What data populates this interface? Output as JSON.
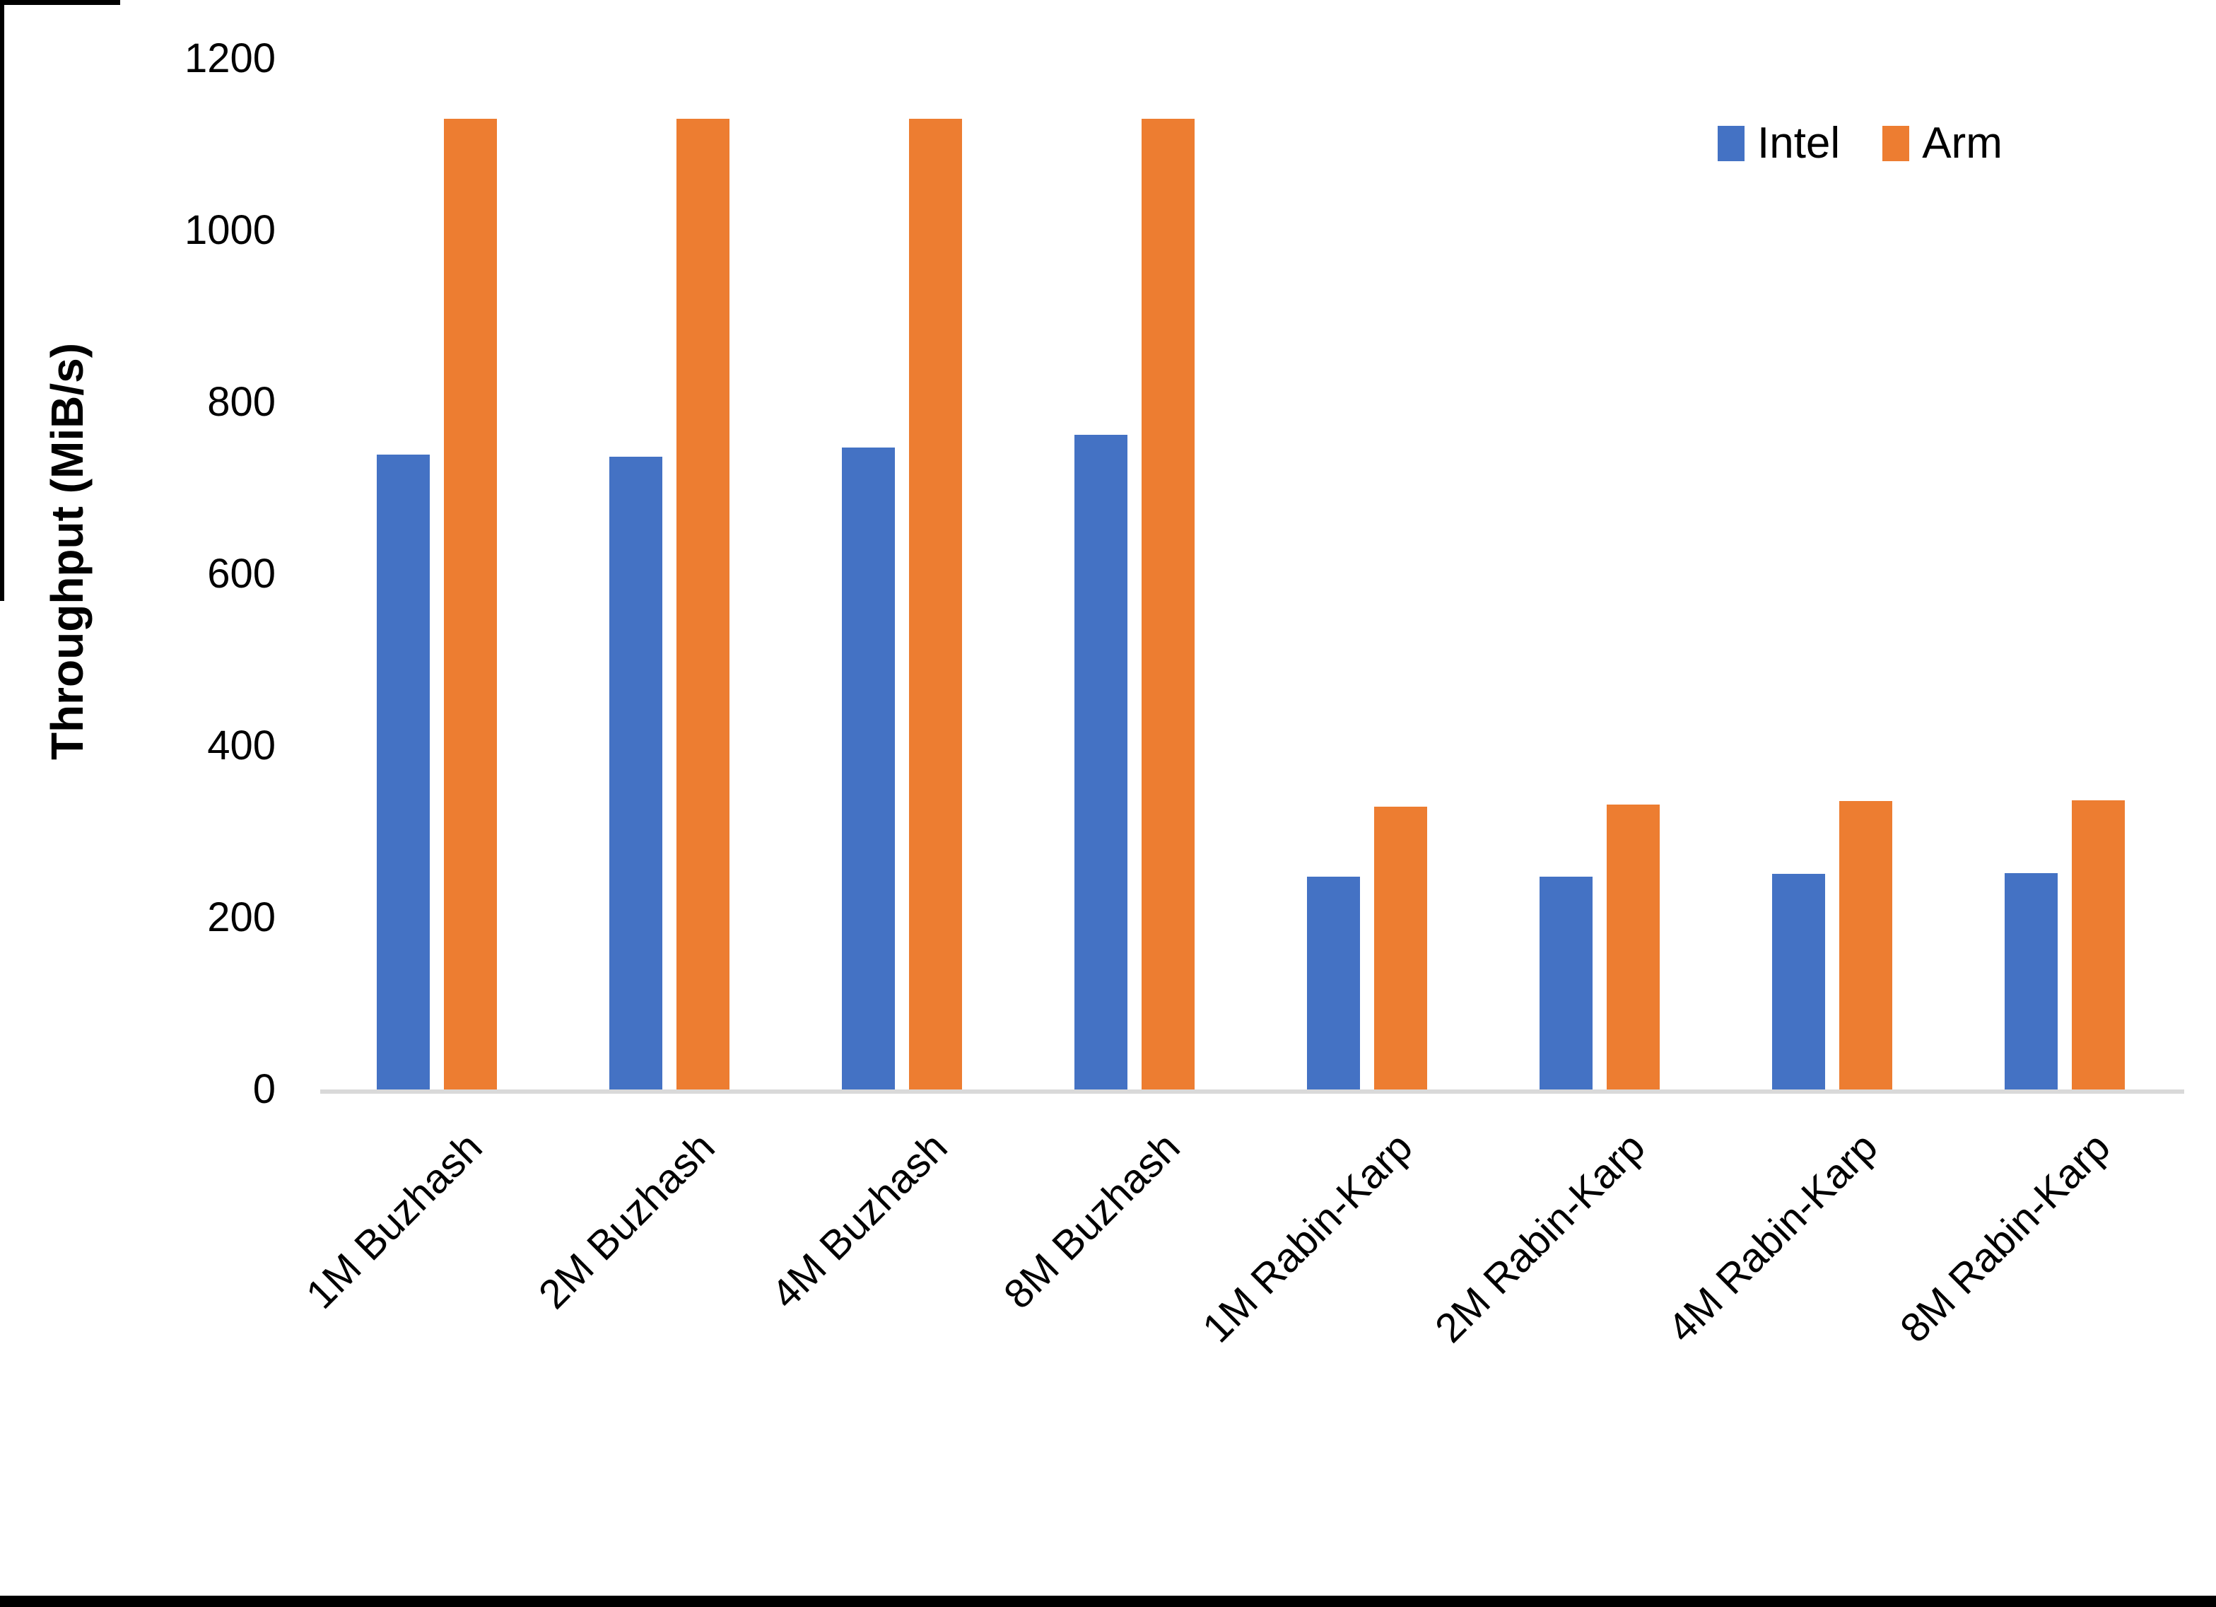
{
  "chart_data": {
    "type": "bar",
    "title": "",
    "xlabel": "",
    "ylabel": "Throughput (MiB/s)",
    "categories": [
      "1M Buzhash",
      "2M Buzhash",
      "4M Buzhash",
      "8M Buzhash",
      "1M Rabin-Karp",
      "2M Rabin-Karp",
      "4M Rabin-Karp",
      "8M Rabin-Karp"
    ],
    "series": [
      {
        "name": "Intel",
        "color": "#4472C4",
        "values": [
          739,
          737,
          747,
          762,
          248,
          248,
          251,
          252
        ]
      },
      {
        "name": "Arm",
        "color": "#ED7D31",
        "values": [
          1130,
          1130,
          1130,
          1130,
          329,
          332,
          336,
          337
        ]
      }
    ],
    "ylim": [
      0,
      1200
    ],
    "yticks": [
      0,
      200,
      400,
      600,
      800,
      1000,
      1200
    ],
    "ytick_labels": [
      "0",
      "200",
      "400",
      "600",
      "800",
      "1000",
      "1200"
    ],
    "grid": false,
    "legend_position": "top-right",
    "axis_line_color": "#d9d9d9",
    "text_color": "#000000"
  },
  "legend": {
    "items": [
      {
        "label": "Intel",
        "color": "#4472C4"
      },
      {
        "label": "Arm",
        "color": "#ED7D31"
      }
    ]
  }
}
